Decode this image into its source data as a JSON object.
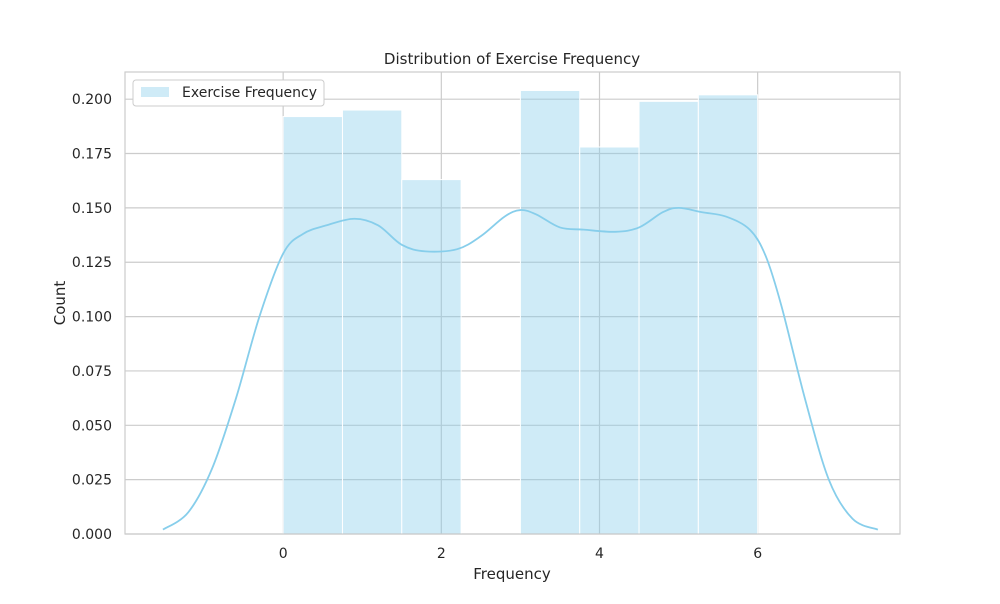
{
  "chart_data": {
    "type": "bar",
    "title": "Distribution of Exercise Frequency",
    "xlabel": "Frequency",
    "ylabel": "Count",
    "xlim": [
      -2.0,
      7.8
    ],
    "ylim": [
      0,
      0.2125
    ],
    "xticks": [
      0,
      2,
      4,
      6
    ],
    "yticks": [
      0.0,
      0.025,
      0.05,
      0.075,
      0.1,
      0.125,
      0.15,
      0.175,
      0.2
    ],
    "ytick_labels": [
      "0.000",
      "0.025",
      "0.050",
      "0.075",
      "0.100",
      "0.125",
      "0.150",
      "0.175",
      "0.200"
    ],
    "grid": true,
    "legend": {
      "position": "top-left",
      "entries": [
        "Exercise Frequency"
      ]
    },
    "colors": {
      "bar": "#87ceeb",
      "kde": "#87ceeb",
      "grid": "#cccccc",
      "frame": "#cccccc"
    },
    "histogram": {
      "bin_edges": [
        0,
        0.75,
        1.5,
        2.25,
        3.0,
        3.75,
        4.5,
        5.25,
        6.0
      ],
      "values": [
        0.192,
        0.195,
        0.163,
        0.0,
        0.204,
        0.178,
        0.199,
        0.202
      ]
    },
    "kde": {
      "x": [
        -1.52,
        -1.2,
        -0.9,
        -0.6,
        -0.3,
        0.0,
        0.25,
        0.55,
        0.9,
        1.2,
        1.5,
        1.8,
        2.2,
        2.5,
        2.8,
        3.0,
        3.2,
        3.5,
        3.8,
        4.2,
        4.5,
        4.8,
        5.0,
        5.3,
        5.6,
        5.9,
        6.1,
        6.3,
        6.6,
        6.9,
        7.2,
        7.52
      ],
      "y": [
        0.002,
        0.01,
        0.03,
        0.062,
        0.1,
        0.129,
        0.138,
        0.142,
        0.145,
        0.142,
        0.133,
        0.13,
        0.131,
        0.137,
        0.146,
        0.149,
        0.147,
        0.141,
        0.14,
        0.139,
        0.141,
        0.148,
        0.15,
        0.148,
        0.146,
        0.14,
        0.128,
        0.105,
        0.062,
        0.025,
        0.007,
        0.002
      ]
    }
  }
}
